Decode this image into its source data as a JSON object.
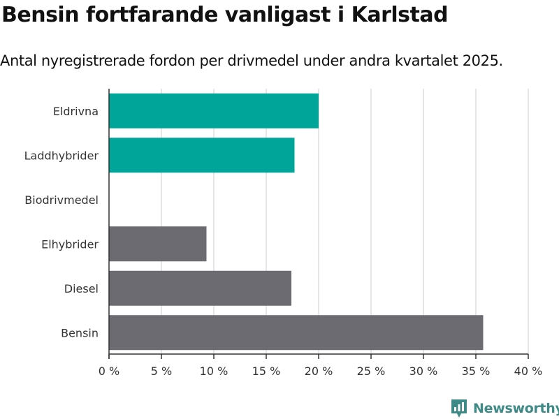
{
  "title": "Bensin fortfarande vanligast i Karlstad",
  "subtitle": "Antal nyregistrerade fordon per drivmedel under andra kvartalet 2025.",
  "brand": {
    "name": "Newsworthy",
    "color": "#3d8a86"
  },
  "colors": {
    "highlight": "#00a59a",
    "default": "#6c6b71",
    "grid": "#dddddd",
    "axis": "#333333"
  },
  "chart_data": {
    "type": "bar",
    "orientation": "horizontal",
    "title": "Bensin fortfarande vanligast i Karlstad",
    "subtitle": "Antal nyregistrerade fordon per drivmedel under andra kvartalet 2025.",
    "categories": [
      "Eldrivna",
      "Laddhybrider",
      "Biodrivmedel",
      "Elhybrider",
      "Diesel",
      "Bensin"
    ],
    "values": [
      20.0,
      17.7,
      0.0,
      9.3,
      17.4,
      35.7
    ],
    "bar_colors": [
      "#00a59a",
      "#00a59a",
      "#00a59a",
      "#6c6b71",
      "#6c6b71",
      "#6c6b71"
    ],
    "xlabel": "",
    "ylabel": "",
    "xlim": [
      0,
      40
    ],
    "x_ticks": [
      0,
      5,
      10,
      15,
      20,
      25,
      30,
      35,
      40
    ],
    "x_tick_labels": [
      "0 %",
      "5 %",
      "10 %",
      "15 %",
      "20 %",
      "25 %",
      "30 %",
      "35 %",
      "40 %"
    ],
    "grid": true,
    "legend": "none"
  }
}
